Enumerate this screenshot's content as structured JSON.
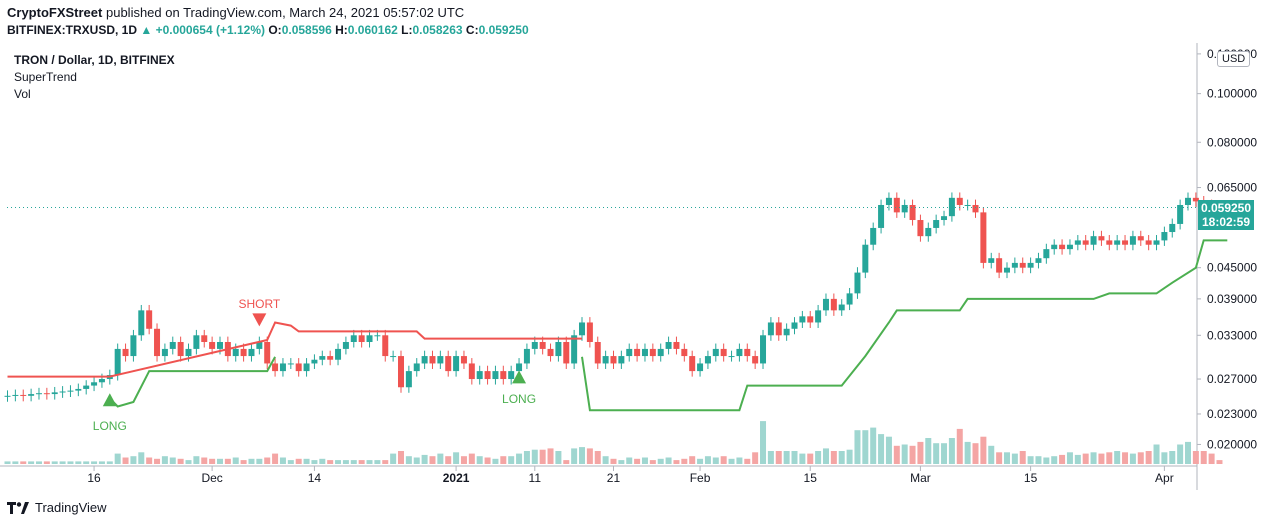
{
  "header": {
    "author": "CryptoFXStreet",
    "published_text": "published on TradingView.com, March 24, 2021 05:57:02 UTC"
  },
  "ohlc": {
    "symbol": "BITFINEX:TRXUSD, 1D",
    "change": "▲ +0.000654 (+1.12%)",
    "o_label": "O:",
    "o_value": "0.058596",
    "h_label": "H:",
    "h_value": "0.060162",
    "l_label": "L:",
    "l_value": "0.058263",
    "c_label": "C:",
    "c_value": "0.059250"
  },
  "legend": {
    "title": "TRON / Dollar, 1D, BITFINEX",
    "indicator1": "SuperTrend",
    "indicator2": "Vol"
  },
  "footer": {
    "brand": "TradingView"
  },
  "axis": {
    "currency": "USD",
    "last_price": "0.059250",
    "countdown": "18:02:59"
  },
  "colors": {
    "up": "#26a69a",
    "down": "#ef5350",
    "supertrend_up": "#4caf50",
    "supertrend_down": "#ef5350",
    "vol_up": "#9fd6d0",
    "vol_down": "#f4a5a4"
  },
  "chart_data": {
    "type": "candlestick",
    "title": "TRON / Dollar, 1D, BITFINEX",
    "y_scale": "log",
    "ylim": [
      0.0182,
      0.125
    ],
    "y_ticks": [
      {
        "label": "0.120000",
        "value": 0.12
      },
      {
        "label": "0.100000",
        "value": 0.1
      },
      {
        "label": "0.080000",
        "value": 0.08
      },
      {
        "label": "0.065000",
        "value": 0.065
      },
      {
        "label": "0.045000",
        "value": 0.045
      },
      {
        "label": "0.039000",
        "value": 0.039
      },
      {
        "label": "0.033000",
        "value": 0.033
      },
      {
        "label": "0.027000",
        "value": 0.027
      },
      {
        "label": "0.023000",
        "value": 0.023
      },
      {
        "label": "0.020000",
        "value": 0.02
      }
    ],
    "x_start_date": "2020-11-05",
    "x_ticks": [
      {
        "label": "16",
        "date": "2020-11-16"
      },
      {
        "label": "Dec",
        "date": "2020-12-01"
      },
      {
        "label": "14",
        "date": "2020-12-14"
      },
      {
        "label": "2021",
        "date": "2021-01-01"
      },
      {
        "label": "11",
        "date": "2021-01-11"
      },
      {
        "label": "21",
        "date": "2021-01-21"
      },
      {
        "label": "Feb",
        "date": "2021-02-01"
      },
      {
        "label": "15",
        "date": "2021-02-15"
      },
      {
        "label": "Mar",
        "date": "2021-03-01"
      },
      {
        "label": "15",
        "date": "2021-03-15"
      },
      {
        "label": "Apr",
        "date": "2021-04-01"
      }
    ],
    "close": [
      0.025,
      0.0251,
      0.025,
      0.0252,
      0.0253,
      0.0252,
      0.0254,
      0.0255,
      0.0256,
      0.0258,
      0.0262,
      0.0266,
      0.027,
      0.0275,
      0.031,
      0.03,
      0.033,
      0.037,
      0.034,
      0.03,
      0.031,
      0.032,
      0.03,
      0.031,
      0.033,
      0.032,
      0.031,
      0.032,
      0.03,
      0.031,
      0.03,
      0.031,
      0.032,
      0.029,
      0.028,
      0.029,
      0.029,
      0.028,
      0.029,
      0.0295,
      0.03,
      0.0295,
      0.031,
      0.032,
      0.033,
      0.032,
      0.033,
      0.033,
      0.03,
      0.03,
      0.026,
      0.028,
      0.029,
      0.03,
      0.029,
      0.03,
      0.028,
      0.03,
      0.029,
      0.027,
      0.028,
      0.027,
      0.028,
      0.027,
      0.028,
      0.029,
      0.031,
      0.032,
      0.031,
      0.03,
      0.032,
      0.029,
      0.033,
      0.035,
      0.032,
      0.029,
      0.03,
      0.029,
      0.03,
      0.031,
      0.03,
      0.031,
      0.03,
      0.031,
      0.032,
      0.031,
      0.03,
      0.028,
      0.029,
      0.03,
      0.031,
      0.03,
      0.03,
      0.031,
      0.03,
      0.029,
      0.033,
      0.035,
      0.033,
      0.034,
      0.035,
      0.036,
      0.035,
      0.037,
      0.039,
      0.037,
      0.038,
      0.04,
      0.044,
      0.05,
      0.054,
      0.06,
      0.062,
      0.058,
      0.06,
      0.056,
      0.052,
      0.054,
      0.056,
      0.057,
      0.062,
      0.06,
      0.06,
      0.058,
      0.046,
      0.047,
      0.044,
      0.045,
      0.046,
      0.045,
      0.046,
      0.047,
      0.049,
      0.05,
      0.049,
      0.05,
      0.051,
      0.05,
      0.052,
      0.051,
      0.05,
      0.051,
      0.05,
      0.052,
      0.051,
      0.05,
      0.051,
      0.053,
      0.055,
      0.06,
      0.062,
      0.061,
      0.06,
      0.0593
    ],
    "series": [
      {
        "name": "SuperTrend",
        "color": "#4caf50",
        "points": [
          [
            13,
            0.0247
          ],
          [
            14,
            0.0238
          ],
          [
            16,
            0.0243
          ],
          [
            18,
            0.028
          ],
          [
            33,
            0.028
          ],
          [
            34,
            0.0299
          ]
        ]
      },
      {
        "name": "SuperTrend",
        "color": "#ef5350",
        "points": [
          [
            0,
            0.0273
          ],
          [
            13,
            0.0273
          ],
          [
            33,
            0.0323
          ],
          [
            34,
            0.035
          ],
          [
            36,
            0.0345
          ],
          [
            37,
            0.0336
          ],
          [
            52,
            0.0336
          ],
          [
            53,
            0.0325
          ],
          [
            73,
            0.0325
          ]
        ]
      },
      {
        "name": "SuperTrend",
        "color": "#4caf50",
        "points": [
          [
            73,
            0.0299
          ],
          [
            74,
            0.0234
          ],
          [
            93,
            0.0234
          ],
          [
            94,
            0.0262
          ],
          [
            106,
            0.0262
          ],
          [
            109,
            0.03
          ],
          [
            112,
            0.035
          ],
          [
            113,
            0.037
          ],
          [
            121,
            0.037
          ],
          [
            122,
            0.039
          ],
          [
            138,
            0.039
          ],
          [
            140,
            0.04
          ],
          [
            146,
            0.04
          ],
          [
            148,
            0.042
          ],
          [
            151,
            0.045
          ],
          [
            152,
            0.051
          ],
          [
            155,
            0.051
          ]
        ]
      }
    ],
    "volume_rel": [
      0.2,
      0.2,
      0.2,
      0.2,
      0.2,
      0.2,
      0.2,
      0.2,
      0.2,
      0.2,
      0.2,
      0.2,
      0.2,
      0.2,
      0.8,
      0.5,
      0.6,
      0.9,
      0.5,
      0.4,
      0.6,
      0.5,
      0.4,
      0.3,
      0.6,
      0.5,
      0.4,
      0.4,
      0.4,
      0.5,
      0.3,
      0.4,
      0.4,
      0.5,
      0.8,
      0.5,
      0.3,
      0.4,
      0.4,
      0.3,
      0.4,
      0.3,
      0.3,
      0.3,
      0.3,
      0.3,
      0.3,
      0.3,
      0.3,
      0.8,
      1.0,
      0.6,
      0.5,
      0.7,
      0.6,
      0.8,
      0.6,
      0.9,
      0.6,
      0.8,
      0.6,
      0.5,
      0.4,
      0.6,
      0.6,
      0.8,
      1.0,
      1.1,
      1.1,
      1.2,
      1.0,
      0.3,
      1.2,
      1.3,
      1.2,
      1.0,
      0.6,
      0.4,
      0.3,
      0.5,
      0.4,
      0.5,
      0.3,
      0.4,
      0.5,
      0.3,
      0.4,
      0.6,
      0.4,
      0.6,
      0.5,
      0.6,
      0.4,
      0.5,
      0.4,
      0.9,
      3.3,
      1.0,
      1.0,
      1.0,
      1.0,
      0.8,
      0.8,
      1.0,
      1.2,
      1.0,
      1.0,
      1.1,
      2.6,
      2.6,
      2.8,
      2.3,
      2.1,
      1.4,
      1.5,
      1.4,
      1.7,
      2.0,
      1.6,
      1.6,
      2.0,
      2.7,
      1.7,
      1.6,
      2.1,
      1.4,
      0.9,
      0.9,
      0.8,
      1.0,
      0.6,
      0.6,
      0.5,
      0.6,
      0.7,
      0.9,
      0.7,
      0.8,
      0.9,
      0.8,
      0.9,
      1.0,
      0.9,
      0.8,
      0.9,
      1.0,
      1.5,
      0.9,
      1.0,
      1.5,
      1.7,
      1.0,
      1.0,
      0.8,
      0.3
    ]
  }
}
